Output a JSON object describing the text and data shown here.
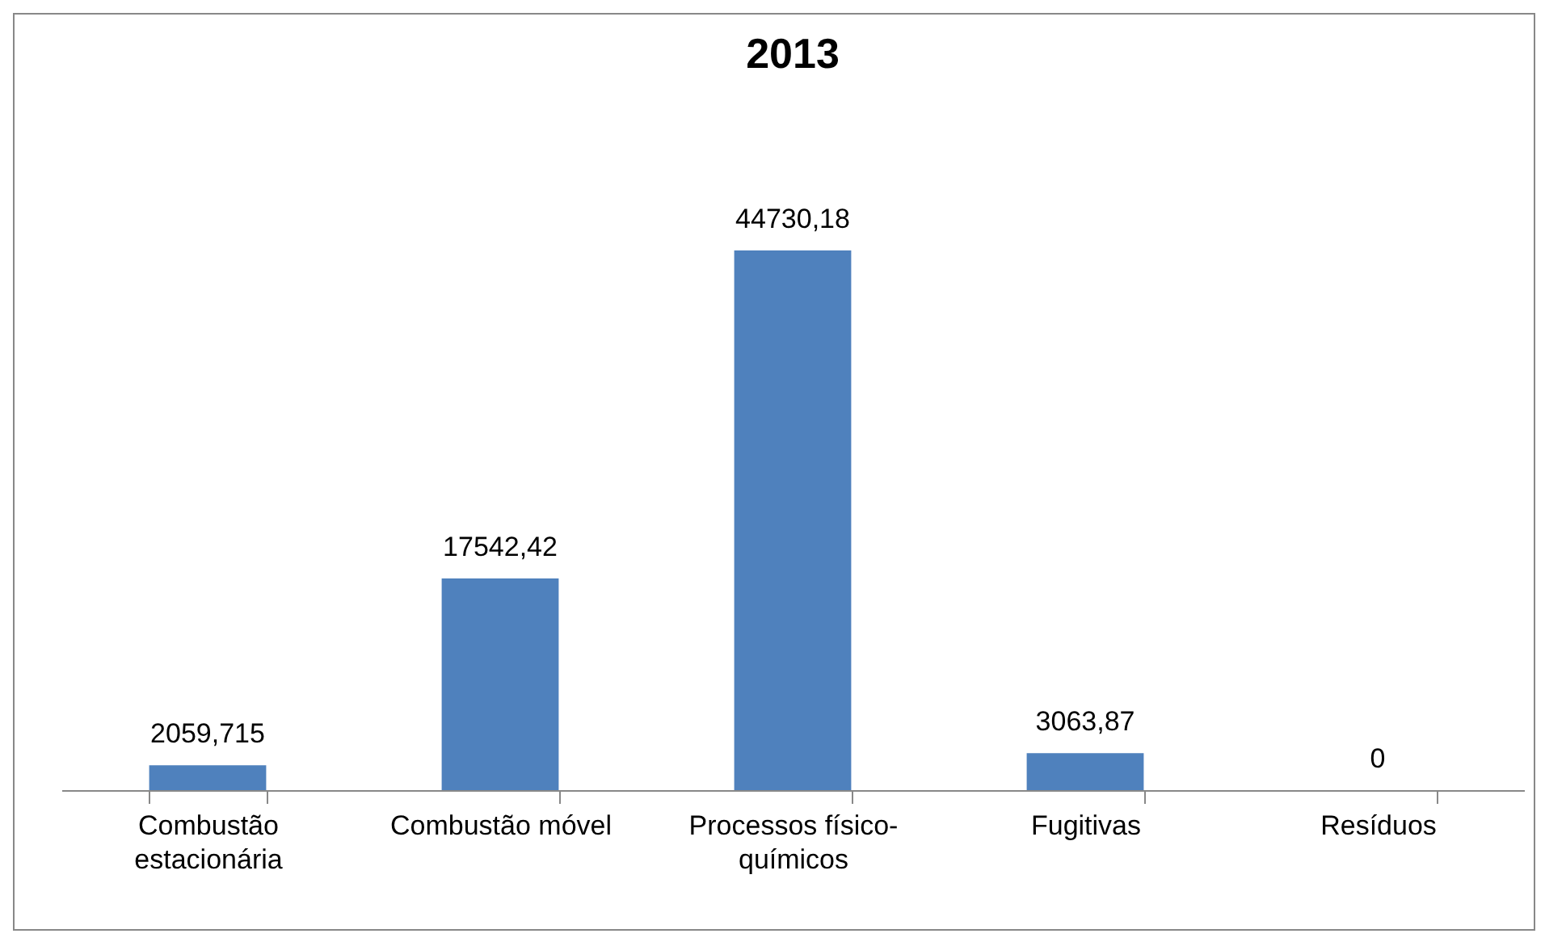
{
  "chart_data": {
    "type": "bar",
    "title": "2013",
    "categories": [
      "Combustão estacionária",
      "Combustão móvel",
      "Processos físico-químicos",
      "Fugitivas",
      "Resíduos"
    ],
    "values": [
      2059.715,
      17542.42,
      44730.18,
      3063.87,
      0
    ],
    "value_labels": [
      "2059,715",
      "17542,42",
      "44730,18",
      "3063,87",
      "0"
    ],
    "color": "#4f81bd"
  }
}
